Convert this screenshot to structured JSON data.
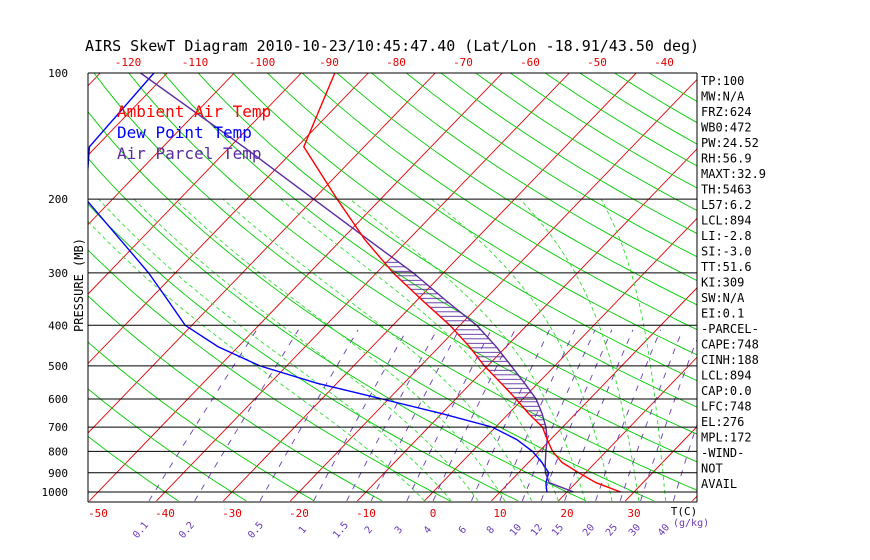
{
  "title": "AIRS SkewT Diagram 2010-10-23/10:45:47.40 (Lat/Lon -18.91/43.50 deg)",
  "legend": [
    {
      "label": "Ambient Air Temp",
      "color": "#ff0000"
    },
    {
      "label": "Dew Point Temp",
      "color": "#0000ff"
    },
    {
      "label": "Air Parcel Temp",
      "color": "#5a2aa0"
    }
  ],
  "colors": {
    "isotherm": "#e60000",
    "dry_adiabat": "#00cc00",
    "moist_adiabat": "#33dd33",
    "mixing_ratio": "#6a3ab8",
    "ambient": "#ff0000",
    "dewpoint": "#0000ff",
    "parcel": "#5a2aa0",
    "top_axis": "#e60000",
    "bottom_axis": "#e60000",
    "mixing_axis": "#6a3ab8",
    "text": "#000000"
  },
  "stats": [
    "TP:100",
    "MW:N/A",
    "FRZ:624",
    "WB0:472",
    "PW:24.52",
    "RH:56.9",
    "MAXT:32.9",
    "TH:5463",
    "L57:6.2",
    "LCL:894",
    "LI:-2.8",
    "SI:-3.0",
    "TT:51.6",
    "KI:309",
    "SW:N/A",
    "EI:0.1",
    "-PARCEL-",
    "CAPE:748",
    "CINH:188",
    "LCL:894",
    "CAP:0.0",
    "LFC:748",
    "EL:276",
    "MPL:172",
    "-WIND-",
    "NOT",
    "AVAIL"
  ],
  "chart_data": {
    "type": "line",
    "title": "AIRS SkewT Diagram 2010-10-23/10:45:47.40 (Lat/Lon -18.91/43.50 deg)",
    "ylabel": "PRESSURE (MB)",
    "xlabel": "T(C)",
    "y_scale": "log",
    "ylim": [
      1000,
      100
    ],
    "y_ticks": [
      100,
      200,
      300,
      400,
      500,
      600,
      700,
      800,
      900,
      1000
    ],
    "bottom_temp_ticks": [
      -50,
      -40,
      -30,
      -20,
      -10,
      0,
      10,
      20,
      30
    ],
    "bottom_axis_label": "T(C)",
    "top_temp_ticks": [
      -120,
      -110,
      -100,
      -90,
      -80,
      -70,
      -60,
      -50,
      -40
    ],
    "mixing_ratio_ticks": [
      "0.1",
      "0.2",
      "0.5",
      "1",
      "1.5",
      "2",
      "3",
      "4",
      "6",
      "8",
      "10",
      "12",
      "15",
      "20",
      "25",
      "30",
      "40"
    ],
    "mixing_ratio_unit": "(g/kg)",
    "series": [
      {
        "name": "Ambient Air Temp",
        "pressure": [
          1000,
          950,
          900,
          850,
          800,
          750,
          700,
          650,
          600,
          550,
          500,
          450,
          400,
          350,
          300,
          250,
          200,
          150,
          100
        ],
        "temperature": [
          28,
          23,
          19,
          15,
          12,
          9.5,
          7,
          3,
          -1,
          -5.5,
          -10.5,
          -15.5,
          -21.5,
          -29,
          -37.5,
          -46.5,
          -56.5,
          -69,
          -75
        ]
      },
      {
        "name": "Dew Point Temp",
        "pressure": [
          1000,
          950,
          900,
          850,
          800,
          750,
          700,
          650,
          600,
          550,
          500,
          450,
          400,
          350,
          300,
          250,
          200,
          150,
          100
        ],
        "temperature": [
          17,
          15.5,
          14.5,
          12,
          9,
          5,
          -0.5,
          -10,
          -21,
          -33,
          -44,
          -53,
          -61,
          -67,
          -74,
          -83,
          -94,
          -101,
          -102
        ]
      },
      {
        "name": "Air Parcel Temp",
        "pressure": [
          1000,
          950,
          900,
          850,
          800,
          750,
          700,
          650,
          600,
          550,
          500,
          450,
          400,
          350,
          300,
          250,
          200,
          150,
          100
        ],
        "temperature": [
          21,
          16,
          14,
          12.5,
          11,
          9.5,
          7.5,
          5,
          2,
          -2,
          -6.5,
          -11.5,
          -17.5,
          -25.5,
          -34.5,
          -46,
          -60,
          -78,
          -104
        ]
      }
    ],
    "grid": true
  }
}
